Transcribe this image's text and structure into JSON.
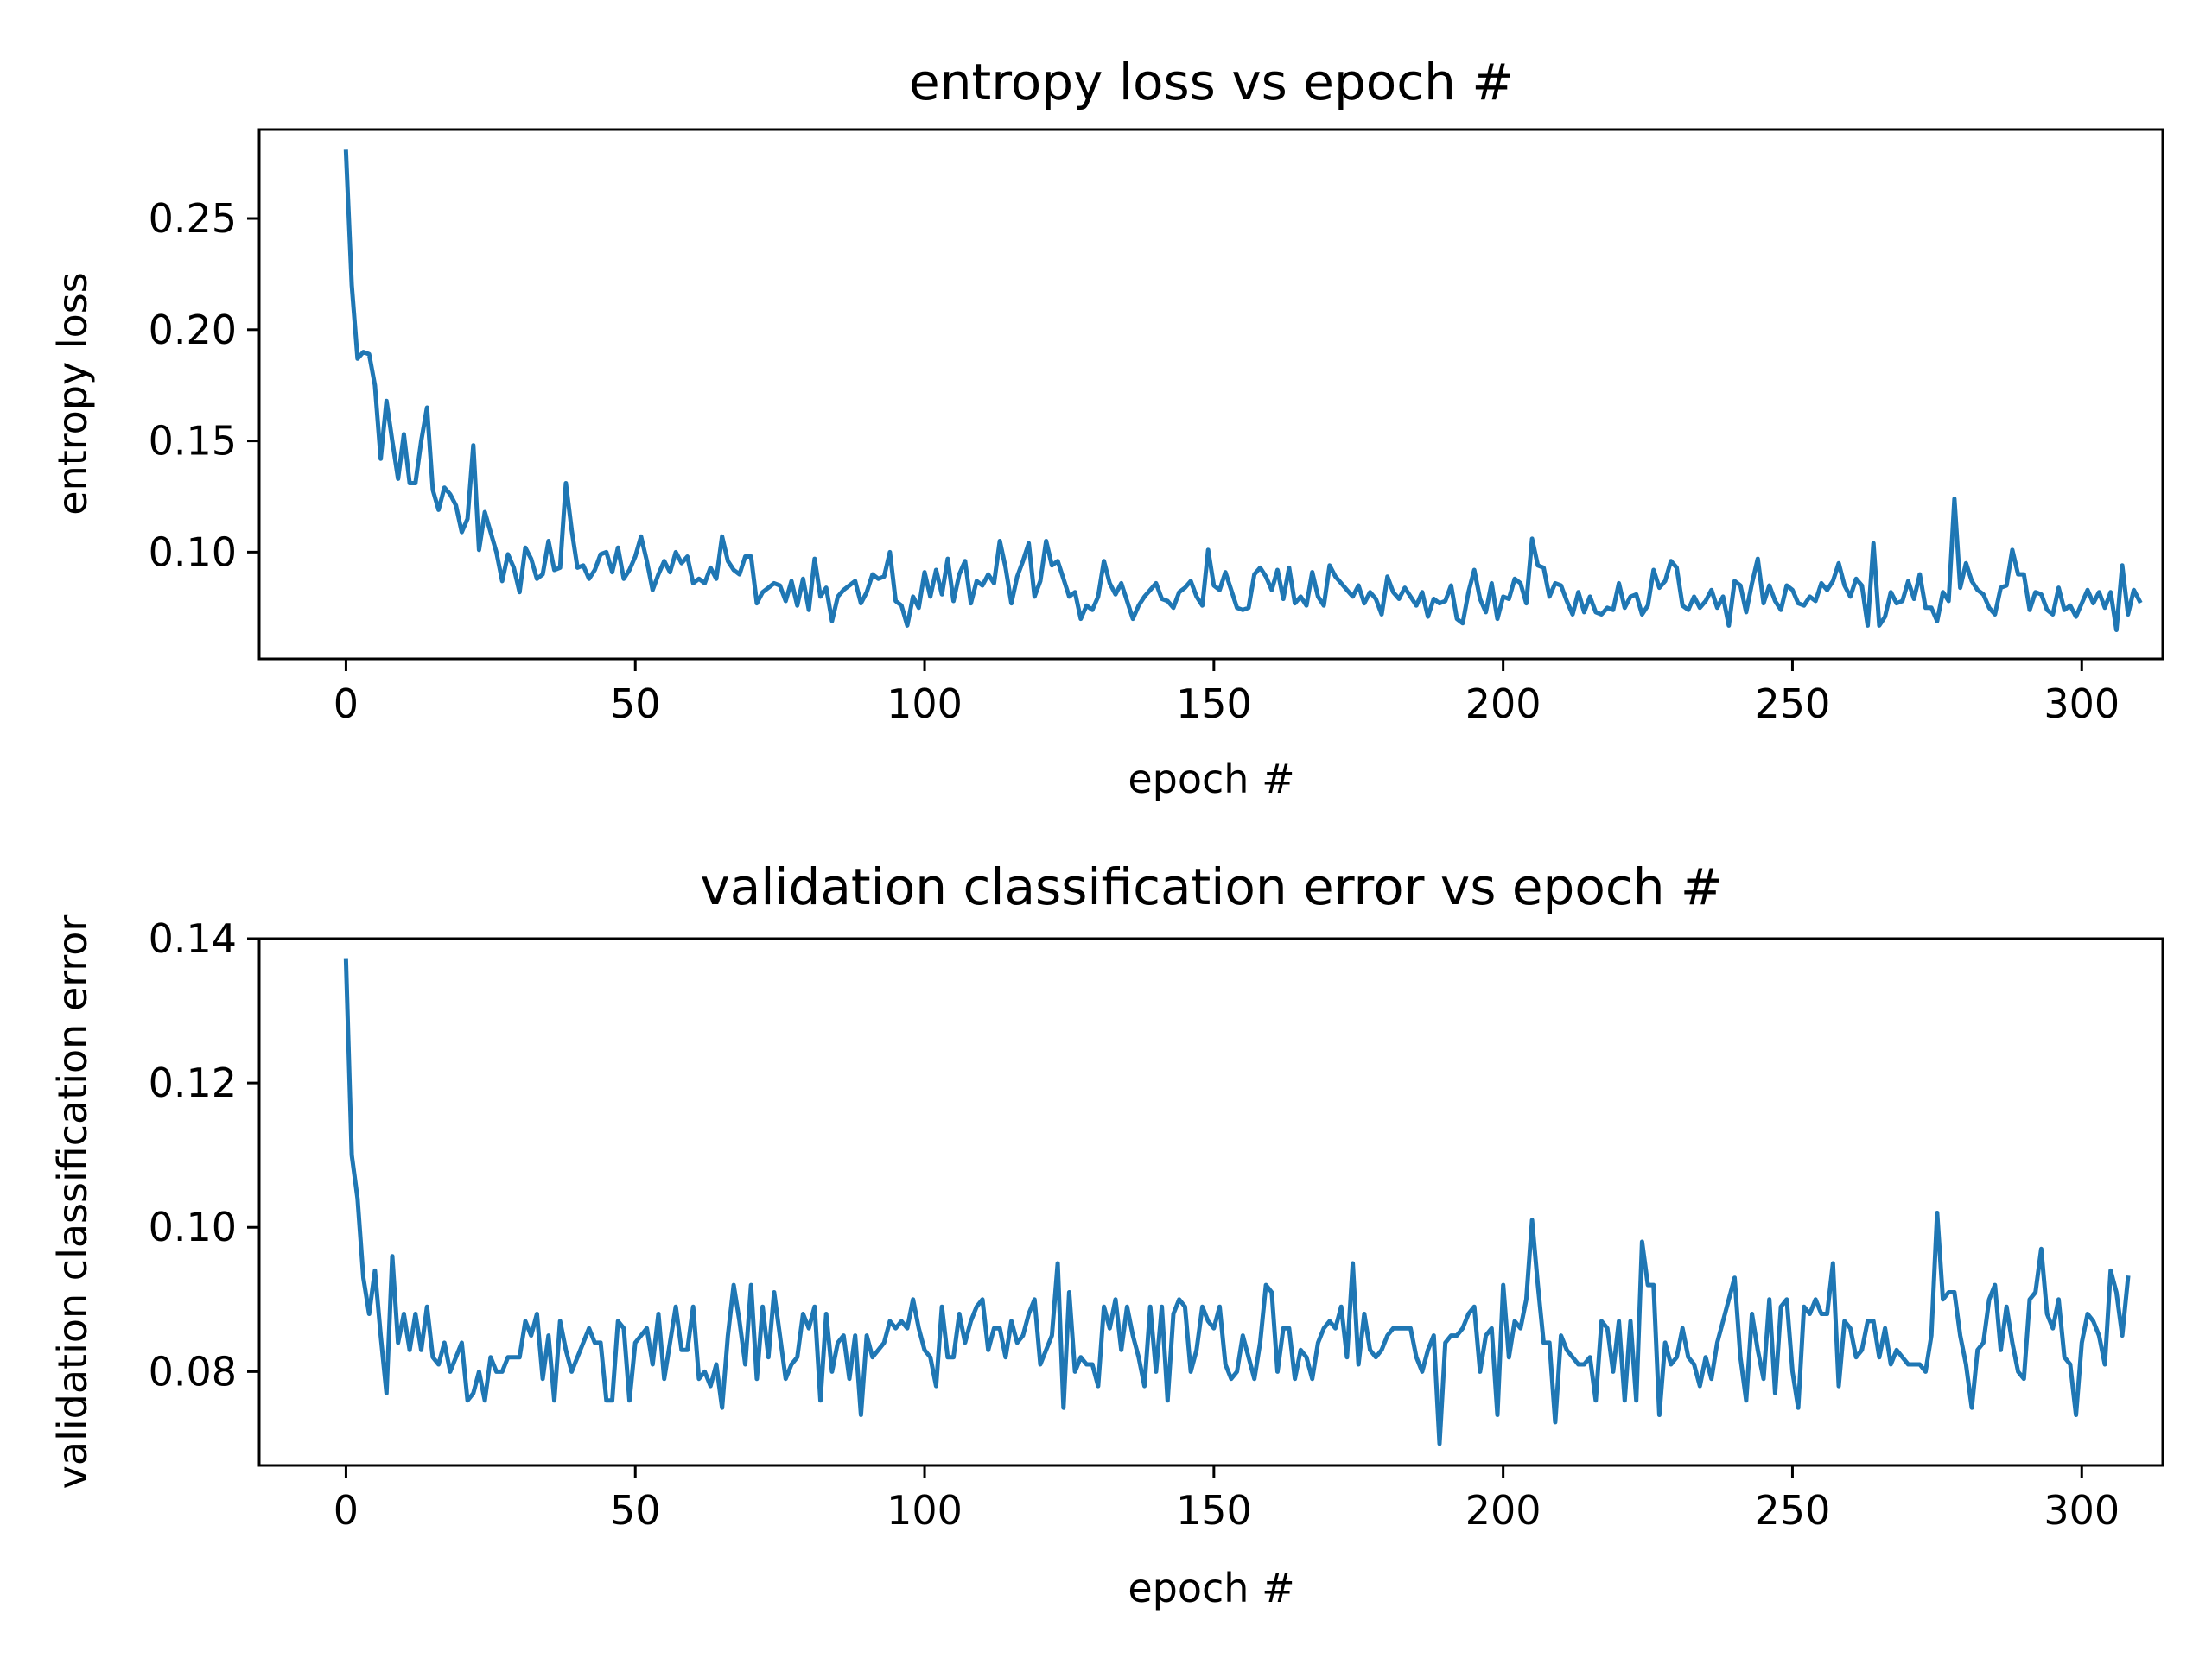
{
  "chart_data": [
    {
      "type": "line",
      "title": "entropy loss vs epoch #",
      "xlabel": "epoch #",
      "ylabel": "entropy loss",
      "xlim": [
        -15,
        314
      ],
      "ylim": [
        0.052,
        0.29
      ],
      "x_ticks": [
        0,
        50,
        100,
        150,
        200,
        250,
        300
      ],
      "y_ticks": [
        0.1,
        0.15,
        0.2,
        0.25
      ],
      "grid": false,
      "line_color": "#1f77b4",
      "series": [
        {
          "x_start": 0,
          "x_step": 1,
          "values": [
            0.28,
            0.22,
            0.187,
            0.19,
            0.189,
            0.175,
            0.142,
            0.168,
            0.15,
            0.133,
            0.153,
            0.131,
            0.131,
            0.15,
            0.165,
            0.128,
            0.119,
            0.129,
            0.126,
            0.121,
            0.109,
            0.115,
            0.148,
            0.101,
            0.118,
            0.109,
            0.1,
            0.087,
            0.099,
            0.093,
            0.082,
            0.102,
            0.097,
            0.088,
            0.09,
            0.105,
            0.092,
            0.093,
            0.131,
            0.11,
            0.093,
            0.094,
            0.088,
            0.092,
            0.099,
            0.1,
            0.091,
            0.102,
            0.088,
            0.092,
            0.098,
            0.107,
            0.096,
            0.083,
            0.09,
            0.096,
            0.091,
            0.1,
            0.095,
            0.098,
            0.086,
            0.088,
            0.086,
            0.093,
            0.088,
            0.107,
            0.096,
            0.092,
            0.09,
            0.098,
            0.098,
            0.077,
            0.082,
            0.084,
            0.086,
            0.085,
            0.078,
            0.087,
            0.076,
            0.088,
            0.074,
            0.097,
            0.08,
            0.084,
            0.069,
            0.08,
            0.083,
            0.085,
            0.087,
            0.077,
            0.082,
            0.09,
            0.088,
            0.089,
            0.1,
            0.078,
            0.076,
            0.067,
            0.08,
            0.075,
            0.091,
            0.08,
            0.092,
            0.081,
            0.097,
            0.078,
            0.09,
            0.096,
            0.077,
            0.087,
            0.085,
            0.09,
            0.086,
            0.105,
            0.093,
            0.077,
            0.089,
            0.096,
            0.104,
            0.08,
            0.087,
            0.105,
            0.094,
            0.096,
            0.088,
            0.08,
            0.082,
            0.07,
            0.076,
            0.074,
            0.08,
            0.096,
            0.086,
            0.081,
            0.086,
            0.078,
            0.07,
            0.076,
            0.08,
            0.083,
            0.086,
            0.079,
            0.078,
            0.075,
            0.082,
            0.084,
            0.087,
            0.08,
            0.076,
            0.101,
            0.085,
            0.083,
            0.091,
            0.083,
            0.075,
            0.074,
            0.075,
            0.09,
            0.093,
            0.089,
            0.083,
            0.092,
            0.079,
            0.093,
            0.077,
            0.08,
            0.076,
            0.091,
            0.08,
            0.076,
            0.094,
            0.089,
            0.086,
            0.083,
            0.08,
            0.085,
            0.077,
            0.082,
            0.079,
            0.072,
            0.089,
            0.082,
            0.079,
            0.084,
            0.08,
            0.076,
            0.082,
            0.071,
            0.079,
            0.077,
            0.078,
            0.085,
            0.07,
            0.068,
            0.082,
            0.092,
            0.079,
            0.073,
            0.086,
            0.07,
            0.08,
            0.079,
            0.088,
            0.086,
            0.077,
            0.106,
            0.094,
            0.093,
            0.08,
            0.086,
            0.085,
            0.078,
            0.072,
            0.082,
            0.073,
            0.08,
            0.073,
            0.072,
            0.075,
            0.074,
            0.086,
            0.075,
            0.08,
            0.081,
            0.072,
            0.076,
            0.092,
            0.084,
            0.087,
            0.096,
            0.093,
            0.076,
            0.074,
            0.08,
            0.075,
            0.078,
            0.083,
            0.075,
            0.08,
            0.067,
            0.087,
            0.085,
            0.073,
            0.086,
            0.097,
            0.077,
            0.085,
            0.078,
            0.074,
            0.085,
            0.083,
            0.077,
            0.076,
            0.08,
            0.078,
            0.086,
            0.083,
            0.087,
            0.095,
            0.085,
            0.08,
            0.088,
            0.085,
            0.067,
            0.104,
            0.067,
            0.071,
            0.082,
            0.077,
            0.078,
            0.087,
            0.079,
            0.09,
            0.075,
            0.075,
            0.069,
            0.082,
            0.078,
            0.124,
            0.084,
            0.095,
            0.087,
            0.083,
            0.081,
            0.075,
            0.072,
            0.084,
            0.085,
            0.101,
            0.09,
            0.09,
            0.074,
            0.082,
            0.081,
            0.074,
            0.072,
            0.084,
            0.074,
            0.076,
            0.071,
            0.077,
            0.083,
            0.077,
            0.082,
            0.075,
            0.082,
            0.065,
            0.094,
            0.072,
            0.083,
            0.078
          ]
        }
      ]
    },
    {
      "type": "line",
      "title": "validation classification error vs epoch #",
      "xlabel": "epoch #",
      "ylabel": "validation classification error",
      "xlim": [
        -15,
        314
      ],
      "ylim": [
        0.067,
        0.14
      ],
      "x_ticks": [
        0,
        50,
        100,
        150,
        200,
        250,
        300
      ],
      "y_ticks": [
        0.08,
        0.1,
        0.12,
        0.14
      ],
      "grid": false,
      "line_color": "#1f77b4",
      "series": [
        {
          "x_start": 0,
          "x_step": 1,
          "values": [
            0.137,
            0.11,
            0.104,
            0.093,
            0.088,
            0.094,
            0.085,
            0.077,
            0.096,
            0.084,
            0.088,
            0.083,
            0.088,
            0.083,
            0.089,
            0.082,
            0.081,
            0.084,
            0.08,
            0.082,
            0.084,
            0.076,
            0.077,
            0.08,
            0.076,
            0.082,
            0.08,
            0.08,
            0.082,
            0.082,
            0.082,
            0.087,
            0.085,
            0.088,
            0.079,
            0.085,
            0.076,
            0.087,
            0.083,
            0.08,
            0.082,
            0.084,
            0.086,
            0.084,
            0.084,
            0.076,
            0.076,
            0.087,
            0.086,
            0.076,
            0.084,
            0.085,
            0.086,
            0.081,
            0.088,
            0.079,
            0.084,
            0.089,
            0.083,
            0.083,
            0.089,
            0.079,
            0.08,
            0.078,
            0.081,
            0.075,
            0.085,
            0.092,
            0.087,
            0.081,
            0.092,
            0.079,
            0.089,
            0.082,
            0.091,
            0.085,
            0.079,
            0.081,
            0.082,
            0.088,
            0.086,
            0.089,
            0.076,
            0.088,
            0.08,
            0.084,
            0.085,
            0.079,
            0.085,
            0.074,
            0.085,
            0.082,
            0.083,
            0.084,
            0.087,
            0.086,
            0.087,
            0.086,
            0.09,
            0.086,
            0.083,
            0.082,
            0.078,
            0.089,
            0.082,
            0.082,
            0.088,
            0.084,
            0.087,
            0.089,
            0.09,
            0.083,
            0.086,
            0.086,
            0.082,
            0.087,
            0.084,
            0.085,
            0.088,
            0.09,
            0.081,
            0.083,
            0.085,
            0.095,
            0.075,
            0.091,
            0.08,
            0.082,
            0.081,
            0.081,
            0.078,
            0.089,
            0.086,
            0.09,
            0.083,
            0.089,
            0.085,
            0.082,
            0.078,
            0.089,
            0.08,
            0.089,
            0.076,
            0.088,
            0.09,
            0.089,
            0.08,
            0.083,
            0.089,
            0.087,
            0.086,
            0.089,
            0.081,
            0.079,
            0.08,
            0.085,
            0.082,
            0.079,
            0.084,
            0.092,
            0.091,
            0.08,
            0.086,
            0.086,
            0.079,
            0.083,
            0.082,
            0.079,
            0.084,
            0.086,
            0.087,
            0.086,
            0.089,
            0.082,
            0.095,
            0.081,
            0.088,
            0.083,
            0.082,
            0.083,
            0.085,
            0.086,
            0.086,
            0.086,
            0.086,
            0.082,
            0.08,
            0.083,
            0.085,
            0.07,
            0.084,
            0.085,
            0.085,
            0.086,
            0.088,
            0.089,
            0.08,
            0.085,
            0.086,
            0.074,
            0.092,
            0.082,
            0.087,
            0.086,
            0.09,
            0.101,
            0.092,
            0.084,
            0.084,
            0.073,
            0.085,
            0.083,
            0.082,
            0.081,
            0.081,
            0.082,
            0.076,
            0.087,
            0.086,
            0.08,
            0.087,
            0.076,
            0.087,
            0.076,
            0.098,
            0.092,
            0.092,
            0.074,
            0.084,
            0.081,
            0.082,
            0.086,
            0.082,
            0.081,
            0.078,
            0.082,
            0.079,
            0.084,
            0.087,
            0.09,
            0.093,
            0.082,
            0.076,
            0.088,
            0.083,
            0.079,
            0.09,
            0.077,
            0.089,
            0.09,
            0.08,
            0.075,
            0.089,
            0.088,
            0.09,
            0.088,
            0.088,
            0.095,
            0.078,
            0.087,
            0.086,
            0.082,
            0.083,
            0.087,
            0.087,
            0.082,
            0.086,
            0.081,
            0.083,
            0.082,
            0.081,
            0.081,
            0.081,
            0.08,
            0.085,
            0.102,
            0.09,
            0.091,
            0.091,
            0.085,
            0.081,
            0.075,
            0.083,
            0.084,
            0.09,
            0.092,
            0.083,
            0.089,
            0.084,
            0.08,
            0.079,
            0.09,
            0.091,
            0.097,
            0.088,
            0.086,
            0.09,
            0.082,
            0.081,
            0.074,
            0.084,
            0.088,
            0.087,
            0.085,
            0.081,
            0.094,
            0.091,
            0.085,
            0.093
          ]
        }
      ]
    }
  ]
}
